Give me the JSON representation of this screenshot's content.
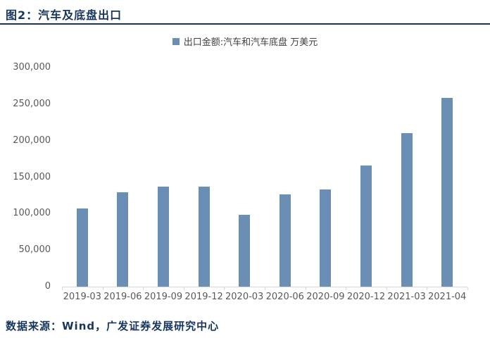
{
  "figure": {
    "title": "图2：汽车及底盘出口",
    "source": "数据来源：Wind，广发证券发展研究中心"
  },
  "legend": {
    "label": "出口金额:汽车和汽车底盘 万美元"
  },
  "colors": {
    "bar": "#6A8EB4",
    "title_text": "#17365D",
    "rule": "#17365D",
    "source_text": "#17365D",
    "legend_text": "#404040",
    "axis_label": "#595959",
    "axis_line": "#D9D9D9",
    "background": "#FFFFFF"
  },
  "chart_data": {
    "type": "bar",
    "title": "出口金额:汽车和汽车底盘 万美元",
    "categories": [
      "2019-03",
      "2019-06",
      "2019-09",
      "2019-12",
      "2020-03",
      "2020-06",
      "2020-09",
      "2020-12",
      "2021-03",
      "2021-04"
    ],
    "values": [
      107000,
      129000,
      136500,
      136500,
      98500,
      126000,
      133000,
      166000,
      210000,
      259000
    ],
    "xlabel": "",
    "ylabel": "",
    "ylim": [
      0,
      300000
    ],
    "ytick_step": 50000,
    "ytick_labels": [
      "0",
      "50,000",
      "100,000",
      "150,000",
      "200,000",
      "250,000",
      "300,000"
    ],
    "grid": false,
    "legend_position": "top-center",
    "bar_color": "#6A8EB4"
  }
}
